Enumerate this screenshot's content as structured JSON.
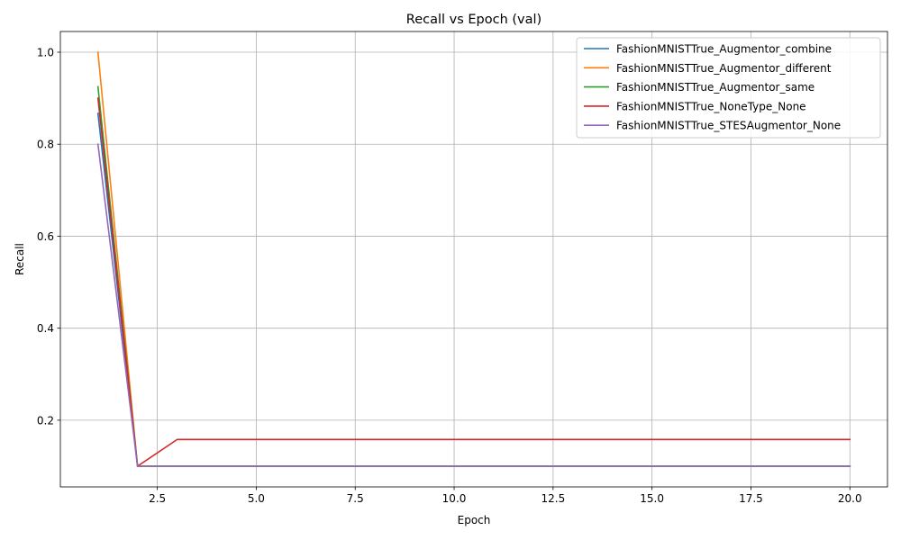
{
  "chart_data": {
    "type": "line",
    "title": "Recall vs Epoch (val)",
    "xlabel": "Epoch",
    "ylabel": "Recall",
    "xlim": [
      0.05,
      20.95
    ],
    "ylim": [
      0.055,
      1.045
    ],
    "xticks": [
      2.5,
      5.0,
      7.5,
      10.0,
      12.5,
      15.0,
      17.5,
      20.0
    ],
    "xtick_labels": [
      "2.5",
      "5.0",
      "7.5",
      "10.0",
      "12.5",
      "15.0",
      "17.5",
      "20.0"
    ],
    "yticks": [
      0.2,
      0.4,
      0.6,
      0.8,
      1.0
    ],
    "ytick_labels": [
      "0.2",
      "0.4",
      "0.6",
      "0.8",
      "1.0"
    ],
    "grid": true,
    "legend_position": "top-right",
    "x": [
      1,
      2,
      3,
      4,
      5,
      6,
      7,
      8,
      9,
      10,
      11,
      12,
      13,
      14,
      15,
      16,
      17,
      18,
      19,
      20
    ],
    "series": [
      {
        "name": "FashionMNISTTrue_Augmentor_combine",
        "color": "#1f77b4",
        "values": [
          0.867,
          0.1,
          0.1,
          0.1,
          0.1,
          0.1,
          0.1,
          0.1,
          0.1,
          0.1,
          0.1,
          0.1,
          0.1,
          0.1,
          0.1,
          0.1,
          0.1,
          0.1,
          0.1,
          0.1
        ]
      },
      {
        "name": "FashionMNISTTrue_Augmentor_different",
        "color": "#ff7f0e",
        "values": [
          1.0,
          0.1,
          0.1,
          0.1,
          0.1,
          0.1,
          0.1,
          0.1,
          0.1,
          0.1,
          0.1,
          0.1,
          0.1,
          0.1,
          0.1,
          0.1,
          0.1,
          0.1,
          0.1,
          0.1
        ]
      },
      {
        "name": "FashionMNISTTrue_Augmentor_same",
        "color": "#2ca02c",
        "values": [
          0.925,
          0.1,
          0.1,
          0.1,
          0.1,
          0.1,
          0.1,
          0.1,
          0.1,
          0.1,
          0.1,
          0.1,
          0.1,
          0.1,
          0.1,
          0.1,
          0.1,
          0.1,
          0.1,
          0.1
        ]
      },
      {
        "name": "FashionMNISTTrue_NoneType_None",
        "color": "#d62728",
        "values": [
          0.9,
          0.1,
          0.158,
          0.158,
          0.158,
          0.158,
          0.158,
          0.158,
          0.158,
          0.158,
          0.158,
          0.158,
          0.158,
          0.158,
          0.158,
          0.158,
          0.158,
          0.158,
          0.158,
          0.158
        ]
      },
      {
        "name": "FashionMNISTTrue_STESAugmentor_None",
        "color": "#9467bd",
        "values": [
          0.8,
          0.1,
          0.1,
          0.1,
          0.1,
          0.1,
          0.1,
          0.1,
          0.1,
          0.1,
          0.1,
          0.1,
          0.1,
          0.1,
          0.1,
          0.1,
          0.1,
          0.1,
          0.1,
          0.1
        ]
      }
    ]
  }
}
